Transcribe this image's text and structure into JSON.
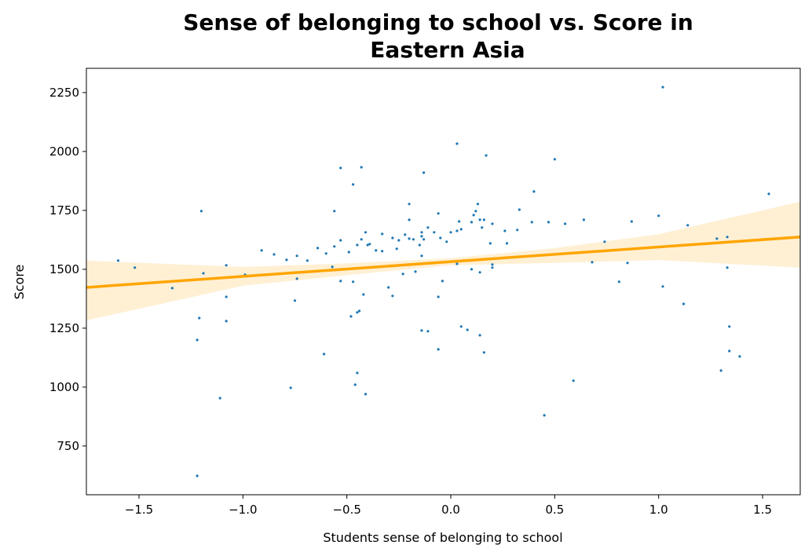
{
  "chart_data": {
    "type": "scatter",
    "title": [
      "Sense of belonging to school vs. Score in",
      "Eastern Asia"
    ],
    "x_label": "Students sense of belonging to school",
    "y_label": "Score",
    "xlim": [
      -1.753,
      1.681
    ],
    "ylim": [
      543,
      2353
    ],
    "xticks": [
      {
        "value": -1.5,
        "label": "−1.5"
      },
      {
        "value": -1.0,
        "label": "−1.0"
      },
      {
        "value": -0.5,
        "label": "−0.5"
      },
      {
        "value": 0,
        "label": "0.0"
      },
      0.5,
      {
        "value": 1.0,
        "label": "1.0"
      },
      1.5
    ],
    "yticks": [
      750,
      1000,
      1250,
      1500,
      1750,
      2000,
      2250
    ],
    "color": "#1f77b4",
    "x": [
      -1.6,
      -1.52,
      -1.34,
      -1.2,
      -1.19,
      -1.21,
      -1.22,
      -1.22,
      -1.11,
      -1.08,
      -1.08,
      -1.08,
      -0.99,
      -0.91,
      -0.85,
      -0.79,
      -0.77,
      -0.75,
      -0.74,
      -0.74,
      -0.69,
      -0.64,
      -0.61,
      -0.6,
      -0.57,
      -0.56,
      -0.56,
      -0.53,
      -0.53,
      -0.53,
      -0.49,
      -0.48,
      -0.47,
      -0.47,
      -0.46,
      -0.45,
      -0.45,
      -0.45,
      -0.44,
      -0.43,
      -0.43,
      -0.42,
      -0.41,
      -0.41,
      -0.4,
      -0.39,
      -0.36,
      -0.33,
      -0.33,
      -0.3,
      -0.28,
      -0.28,
      -0.26,
      -0.25,
      -0.23,
      -0.22,
      -0.2,
      -0.2,
      -0.2,
      -0.18,
      -0.17,
      -0.15,
      -0.14,
      -0.14,
      -0.14,
      -0.14,
      -0.13,
      -0.13,
      -0.11,
      -0.11,
      -0.08,
      -0.06,
      -0.06,
      -0.06,
      -0.05,
      -0.04,
      -0.02,
      0.0,
      0.03,
      0.03,
      0.03,
      0.04,
      0.05,
      0.05,
      0.08,
      0.1,
      0.1,
      0.11,
      0.12,
      0.13,
      0.14,
      0.14,
      0.14,
      0.15,
      0.16,
      0.16,
      0.17,
      0.19,
      0.2,
      0.2,
      0.2,
      0.26,
      0.27,
      0.32,
      0.33,
      0.39,
      0.4,
      0.45,
      0.47,
      0.5,
      0.55,
      0.59,
      0.64,
      0.68,
      0.74,
      0.81,
      0.85,
      0.87,
      1.0,
      1.02,
      1.02,
      1.12,
      1.14,
      1.28,
      1.3,
      1.33,
      1.33,
      1.34,
      1.34,
      1.39,
      1.53
    ],
    "values": [
      1537,
      1507,
      1420,
      1747,
      1483,
      1293,
      1200,
      623,
      953,
      1517,
      1383,
      1280,
      1477,
      1580,
      1563,
      1540,
      997,
      1367,
      1557,
      1460,
      1537,
      1590,
      1140,
      1567,
      1510,
      1747,
      1597,
      1450,
      1623,
      1930,
      1573,
      1300,
      1447,
      1860,
      1010,
      1060,
      1603,
      1317,
      1323,
      1933,
      1627,
      1393,
      970,
      1657,
      1603,
      1607,
      1580,
      1577,
      1650,
      1423,
      1387,
      1633,
      1587,
      1623,
      1480,
      1647,
      1630,
      1777,
      1710,
      1627,
      1490,
      1603,
      1240,
      1557,
      1657,
      1640,
      1627,
      1910,
      1677,
      1237,
      1657,
      1737,
      1383,
      1160,
      1633,
      1450,
      1617,
      1657,
      2033,
      1663,
      1523,
      1703,
      1670,
      1257,
      1243,
      1700,
      1500,
      1730,
      1747,
      1777,
      1710,
      1220,
      1487,
      1677,
      1710,
      1147,
      1983,
      1610,
      1693,
      1507,
      1520,
      1663,
      1610,
      1667,
      1753,
      1700,
      1830,
      880,
      1700,
      1967,
      1693,
      1027,
      1710,
      1530,
      1617,
      1447,
      1527,
      1703,
      1727,
      1427,
      2273,
      1353,
      1687,
      1630,
      1070,
      1507,
      1637,
      1257,
      1153,
      1130,
      1820
    ],
    "regression": {
      "color": "#ffa500",
      "x": [
        -1.753,
        1.681
      ],
      "values": [
        1423,
        1637
      ]
    },
    "band": {
      "x": [
        -1.753,
        -1.0,
        -0.5,
        0,
        0.5,
        1.0,
        1.681
      ],
      "upper": [
        1537,
        1510,
        1525,
        1547,
        1590,
        1649,
        1787
      ],
      "lower": [
        1283,
        1430,
        1475,
        1517,
        1527,
        1539,
        1507
      ]
    }
  }
}
